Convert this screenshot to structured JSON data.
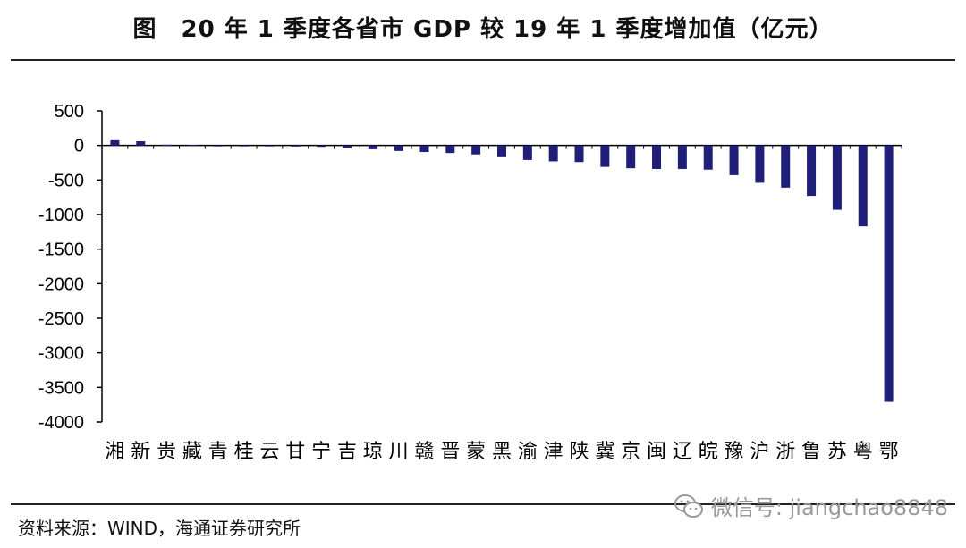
{
  "header": {
    "title": "图　20 年 1 季度各省市 GDP 较 19 年 1 季度增加值（亿元）"
  },
  "footer": {
    "source": "资料来源：WIND，海通证券研究所"
  },
  "watermark": {
    "text": "微信号: jiangchao8848",
    "icon": "wechat-icon"
  },
  "colors": {
    "bar": "#1f1f7a",
    "axis": "#000000"
  },
  "chart_data": {
    "type": "bar",
    "title": "20 年 1 季度各省市 GDP 较 19 年 1 季度增加值（亿元）",
    "xlabel": "",
    "ylabel": "",
    "ylim": [
      -4000,
      500
    ],
    "yticks": [
      500,
      0,
      -500,
      -1000,
      -1500,
      -2000,
      -2500,
      -3000,
      -3500,
      -4000
    ],
    "ytick_labels": [
      "500",
      "0",
      "-500",
      "-1000",
      "-1500",
      "-2000",
      "-2500",
      "-3000",
      "-3500",
      "-4000"
    ],
    "grid": false,
    "legend": "none",
    "categories": [
      "湘",
      "新",
      "贵",
      "藏",
      "青",
      "桂",
      "云",
      "甘",
      "宁",
      "吉",
      "琼",
      "川",
      "赣",
      "晋",
      "蒙",
      "黑",
      "渝",
      "津",
      "陕",
      "冀",
      "京",
      "闽",
      "辽",
      "皖",
      "豫",
      "沪",
      "浙",
      "鲁",
      "苏",
      "粤",
      "鄂"
    ],
    "values": [
      75,
      60,
      10,
      5,
      -5,
      -8,
      -10,
      -15,
      -20,
      -40,
      -55,
      -80,
      -95,
      -110,
      -130,
      -170,
      -210,
      -230,
      -240,
      -310,
      -330,
      -340,
      -340,
      -350,
      -430,
      -540,
      -610,
      -730,
      -930,
      -1170,
      -3710
    ]
  }
}
